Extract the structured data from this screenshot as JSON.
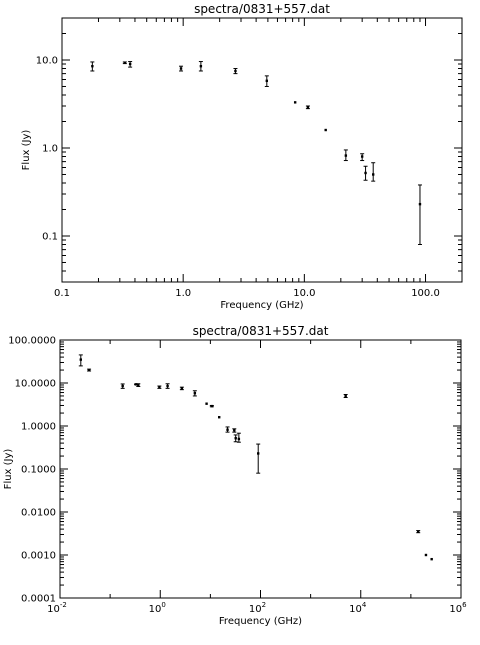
{
  "chart_data": [
    {
      "type": "scatter",
      "title": "spectra/0831+557.dat",
      "xlabel": "Frequency (GHz)",
      "ylabel": "Flux (Jy)",
      "x_scale": "log",
      "y_scale": "log",
      "xlim": [
        0.1,
        200
      ],
      "ylim": [
        0.03,
        30
      ],
      "x_ticks": [
        0.1,
        1,
        10,
        100
      ],
      "x_tick_labels": [
        "0.1",
        "1.0",
        "10.0",
        "100.0"
      ],
      "y_ticks": [
        0.1,
        1,
        10
      ],
      "y_tick_labels": [
        "0.1",
        "1.0",
        "10.0"
      ],
      "grid": false,
      "legend": "none",
      "points": [
        {
          "x": 0.178,
          "y": 8.5,
          "lo": 7.5,
          "hi": 9.5
        },
        {
          "x": 0.33,
          "y": 9.3,
          "lo": 9.1,
          "hi": 9.5
        },
        {
          "x": 0.365,
          "y": 9.0,
          "lo": 8.3,
          "hi": 9.6
        },
        {
          "x": 0.96,
          "y": 8.0,
          "lo": 7.5,
          "hi": 8.5
        },
        {
          "x": 1.4,
          "y": 8.5,
          "lo": 7.5,
          "hi": 9.6
        },
        {
          "x": 2.7,
          "y": 7.5,
          "lo": 7.0,
          "hi": 8.0
        },
        {
          "x": 4.9,
          "y": 5.8,
          "lo": 5.0,
          "hi": 6.6
        },
        {
          "x": 8.4,
          "y": 3.3,
          "lo": 3.3,
          "hi": 3.3
        },
        {
          "x": 10.7,
          "y": 2.9,
          "lo": 2.8,
          "hi": 3.0
        },
        {
          "x": 15.0,
          "y": 1.6,
          "lo": 1.6,
          "hi": 1.6
        },
        {
          "x": 22.0,
          "y": 0.82,
          "lo": 0.72,
          "hi": 0.95
        },
        {
          "x": 30.0,
          "y": 0.8,
          "lo": 0.72,
          "hi": 0.86
        },
        {
          "x": 32.0,
          "y": 0.52,
          "lo": 0.43,
          "hi": 0.62
        },
        {
          "x": 37.0,
          "y": 0.5,
          "lo": 0.42,
          "hi": 0.68
        },
        {
          "x": 90.0,
          "y": 0.23,
          "lo": 0.08,
          "hi": 0.38
        }
      ]
    },
    {
      "type": "scatter",
      "title": "spectra/0831+557.dat",
      "xlabel": "Frequency (GHz)",
      "ylabel": "Flux (Jy)",
      "x_scale": "log",
      "y_scale": "log",
      "xlim": [
        0.01,
        1000000
      ],
      "ylim": [
        0.0001,
        100
      ],
      "x_ticks": [
        0.01,
        1,
        100,
        10000,
        1000000
      ],
      "x_tick_labels": [
        {
          "base": "10",
          "exp": "-2"
        },
        {
          "base": "10",
          "exp": "0"
        },
        {
          "base": "10",
          "exp": "2"
        },
        {
          "base": "10",
          "exp": "4"
        },
        {
          "base": "10",
          "exp": "6"
        }
      ],
      "y_ticks": [
        0.0001,
        0.001,
        0.01,
        0.1,
        1,
        10,
        100
      ],
      "y_tick_labels": [
        "0.0001",
        "0.0010",
        "0.0100",
        "0.1000",
        "1.0000",
        "10.0000",
        "100.0000"
      ],
      "grid": false,
      "legend": "none",
      "points": [
        {
          "x": 0.026,
          "y": 35,
          "lo": 25,
          "hi": 45
        },
        {
          "x": 0.038,
          "y": 20,
          "lo": 19,
          "hi": 21
        },
        {
          "x": 0.178,
          "y": 8.5,
          "lo": 7.5,
          "hi": 9.5
        },
        {
          "x": 0.33,
          "y": 9.3,
          "lo": 9.1,
          "hi": 9.5
        },
        {
          "x": 0.365,
          "y": 9.0,
          "lo": 8.3,
          "hi": 9.6
        },
        {
          "x": 0.96,
          "y": 8.0,
          "lo": 7.5,
          "hi": 8.5
        },
        {
          "x": 1.4,
          "y": 8.5,
          "lo": 7.5,
          "hi": 9.6
        },
        {
          "x": 2.7,
          "y": 7.5,
          "lo": 7.0,
          "hi": 8.0
        },
        {
          "x": 4.9,
          "y": 5.8,
          "lo": 5.0,
          "hi": 6.6
        },
        {
          "x": 8.4,
          "y": 3.3,
          "lo": 3.3,
          "hi": 3.3
        },
        {
          "x": 10.7,
          "y": 2.9,
          "lo": 2.8,
          "hi": 3.0
        },
        {
          "x": 15.0,
          "y": 1.6,
          "lo": 1.6,
          "hi": 1.6
        },
        {
          "x": 22.0,
          "y": 0.82,
          "lo": 0.72,
          "hi": 0.95
        },
        {
          "x": 30.0,
          "y": 0.8,
          "lo": 0.72,
          "hi": 0.86
        },
        {
          "x": 32.0,
          "y": 0.52,
          "lo": 0.43,
          "hi": 0.62
        },
        {
          "x": 37.0,
          "y": 0.5,
          "lo": 0.42,
          "hi": 0.68
        },
        {
          "x": 90.0,
          "y": 0.23,
          "lo": 0.08,
          "hi": 0.38
        },
        {
          "x": 5000,
          "y": 5.0,
          "lo": 4.6,
          "hi": 5.4
        },
        {
          "x": 140000,
          "y": 0.0035,
          "lo": 0.0033,
          "hi": 0.0037
        },
        {
          "x": 200000,
          "y": 0.001,
          "lo": 0.001,
          "hi": 0.001
        },
        {
          "x": 260000,
          "y": 0.0008,
          "lo": 0.0008,
          "hi": 0.0008
        }
      ]
    }
  ]
}
